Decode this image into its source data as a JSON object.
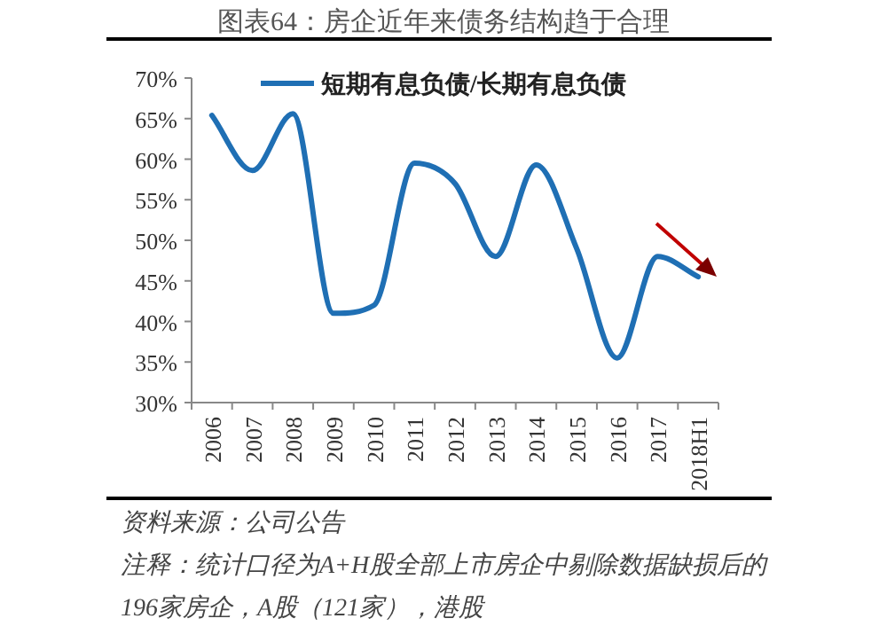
{
  "chart_data": {
    "type": "line",
    "title": "图表64：房企近年来债务结构趋于合理",
    "categories": [
      "2006",
      "2007",
      "2008",
      "2009",
      "2010",
      "2011",
      "2012",
      "2013",
      "2014",
      "2015",
      "2016",
      "2017",
      "2018H1"
    ],
    "series": [
      {
        "name": "短期有息负债/长期有息负债",
        "color": "#1f6fb4",
        "values": [
          65.4,
          58.6,
          65.6,
          41,
          42,
          59.5,
          57,
          48,
          59.3,
          49,
          35.5,
          48,
          45.5
        ]
      }
    ],
    "ylim": [
      30,
      70
    ],
    "yticks": [
      {
        "value": 30,
        "label": "30%"
      },
      {
        "value": 35,
        "label": "35%"
      },
      {
        "value": 40,
        "label": "40%"
      },
      {
        "value": 45,
        "label": "45%"
      },
      {
        "value": 50,
        "label": "50%"
      },
      {
        "value": 55,
        "label": "55%"
      },
      {
        "value": 60,
        "label": "60%"
      },
      {
        "value": 65,
        "label": "65%"
      },
      {
        "value": 70,
        "label": "70%"
      }
    ],
    "legend": "top",
    "annotations": [
      "资料来源：公司公告",
      "注释：统计口径为A+H股全部上市房企中剔除数据缺损后的196家房企，A股（121家），港股"
    ]
  }
}
